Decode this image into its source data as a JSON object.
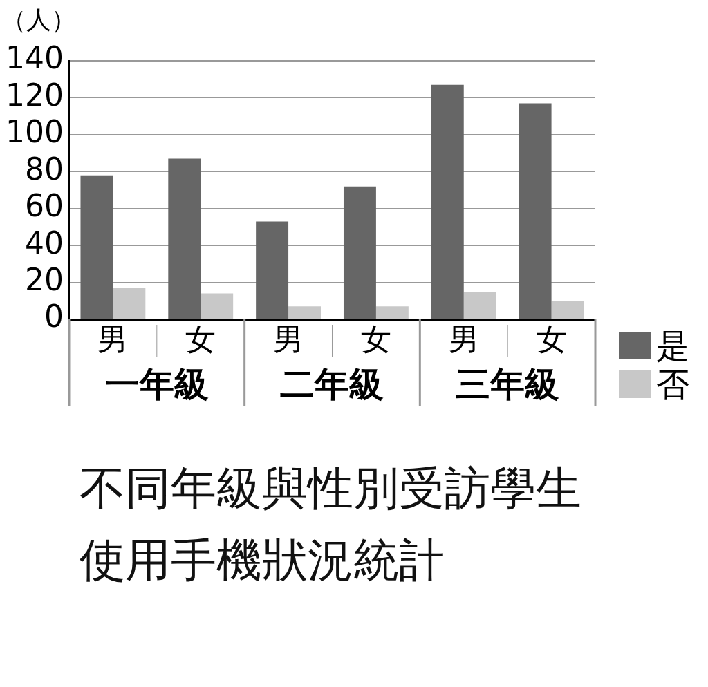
{
  "chart_data": {
    "type": "bar",
    "title": "不同年級與性別受訪學生使用手機狀況統計",
    "ylabel": "（人）",
    "categories": [
      "男",
      "女",
      "男",
      "女",
      "男",
      "女"
    ],
    "annotations": [
      "一年級",
      "二年級",
      "三年級"
    ],
    "series": [
      {
        "name": "是",
        "color": "#666666",
        "values": [
          78,
          87,
          53,
          72,
          127,
          117
        ]
      },
      {
        "name": "否",
        "color": "#c8c8c8",
        "values": [
          17,
          14,
          7,
          7,
          15,
          10
        ]
      }
    ],
    "ylim": [
      0,
      140
    ],
    "yticks": [
      0,
      20,
      40,
      60,
      80,
      100,
      120,
      140
    ],
    "grid": "y",
    "legend": "right"
  }
}
